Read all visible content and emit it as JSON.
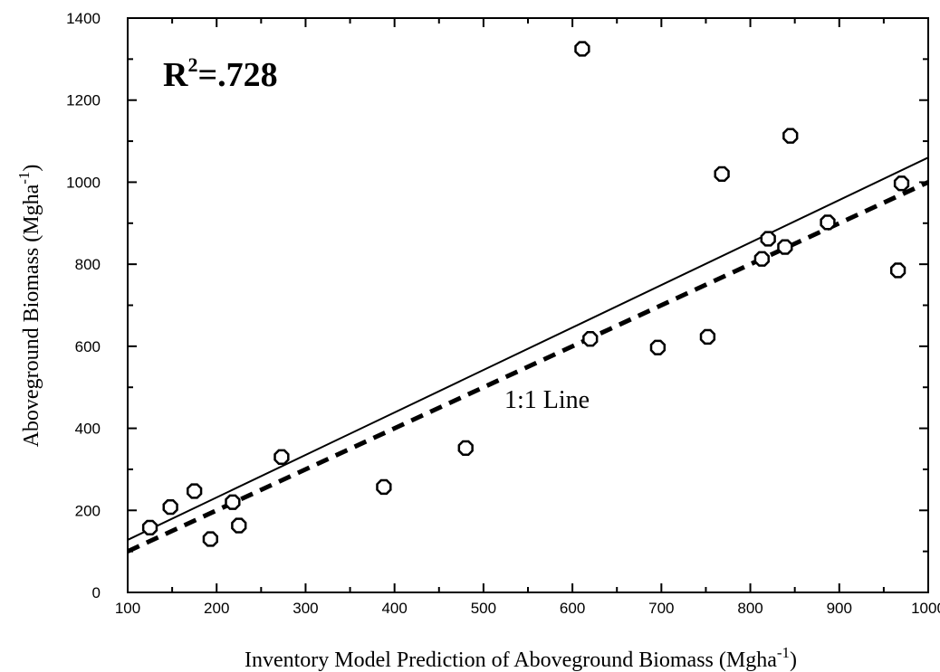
{
  "chart_data": {
    "type": "scatter",
    "title": "",
    "xlabel": "Inventory Model Prediction of  Aboveground Biomass (Mgha",
    "xlabel_sup": "-1",
    "xlabel_end": ")",
    "ylabel": "Aboveground Biomass (Mgha",
    "ylabel_sup": "-1",
    "ylabel_end": ")",
    "xlim": [
      100,
      1000
    ],
    "ylim": [
      0,
      1400
    ],
    "x_ticks": [
      100,
      200,
      300,
      400,
      500,
      600,
      700,
      800,
      900,
      1000
    ],
    "y_ticks": [
      0,
      200,
      400,
      600,
      800,
      1000,
      1200,
      1400
    ],
    "grid": false,
    "points": [
      {
        "x": 125,
        "y": 158
      },
      {
        "x": 148,
        "y": 208
      },
      {
        "x": 175,
        "y": 247
      },
      {
        "x": 193,
        "y": 130
      },
      {
        "x": 218,
        "y": 220
      },
      {
        "x": 225,
        "y": 163
      },
      {
        "x": 273,
        "y": 330
      },
      {
        "x": 388,
        "y": 257
      },
      {
        "x": 480,
        "y": 352
      },
      {
        "x": 611,
        "y": 1325
      },
      {
        "x": 620,
        "y": 618
      },
      {
        "x": 696,
        "y": 597
      },
      {
        "x": 752,
        "y": 623
      },
      {
        "x": 768,
        "y": 1020
      },
      {
        "x": 813,
        "y": 813
      },
      {
        "x": 820,
        "y": 862
      },
      {
        "x": 839,
        "y": 842
      },
      {
        "x": 845,
        "y": 1113
      },
      {
        "x": 887,
        "y": 902
      },
      {
        "x": 966,
        "y": 785
      },
      {
        "x": 970,
        "y": 997
      }
    ],
    "regression_line": {
      "x": [
        100,
        1000
      ],
      "y": [
        128,
        1060
      ]
    },
    "one_to_one_line": {
      "x": [
        100,
        1000
      ],
      "y": [
        100,
        1000
      ]
    },
    "annotation_r2_base": "R",
    "annotation_r2_sup": "2",
    "annotation_r2_value": "=.728",
    "annotation_line_label": "1:1 Line"
  }
}
